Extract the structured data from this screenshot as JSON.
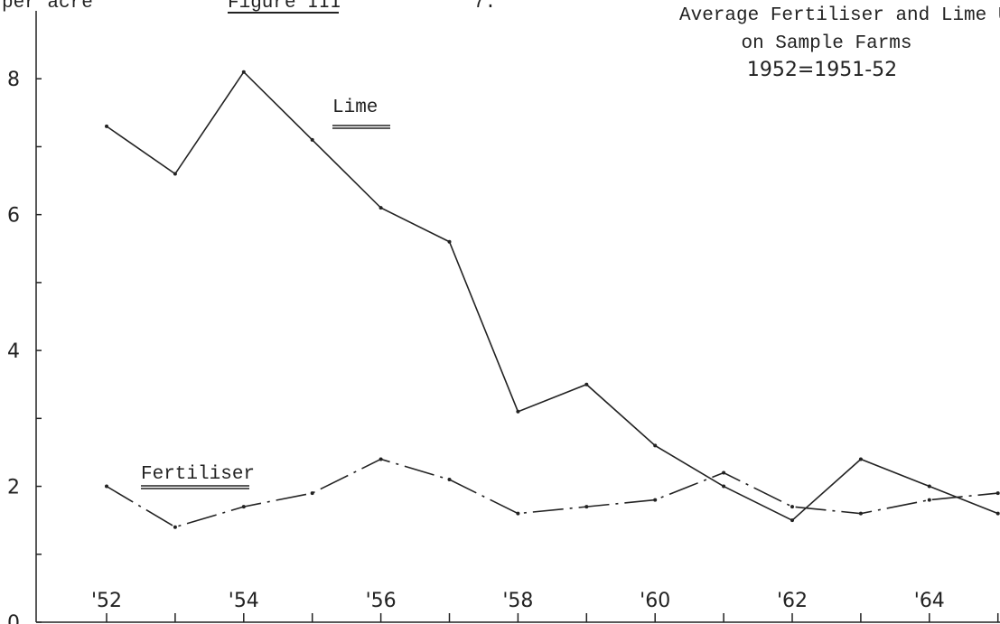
{
  "chart_data": {
    "type": "line",
    "unit_label": "per acre",
    "figure_label": "Figure III",
    "page_number": "7.",
    "title": "Average Fertiliser and Lime Us",
    "subtitle": "on Sample Farms",
    "subtitle2": "1952=1951-52",
    "categories": [
      "'52",
      null,
      "'54",
      null,
      "'56",
      null,
      "'58",
      null,
      "'60",
      null,
      "'62",
      null,
      "'64",
      null
    ],
    "series": [
      {
        "name": "Lime",
        "color": "#222222",
        "dash": "none",
        "values": [
          7.3,
          6.6,
          8.1,
          7.1,
          6.1,
          5.6,
          3.1,
          3.5,
          2.6,
          2.0,
          1.5,
          2.4,
          2.0,
          1.6
        ]
      },
      {
        "name": "Fertiliser",
        "color": "#222222",
        "dash": "34 7 3 7",
        "values": [
          2.0,
          1.4,
          1.7,
          1.9,
          2.4,
          2.1,
          1.6,
          1.7,
          1.8,
          2.2,
          1.7,
          1.6,
          1.8,
          1.9
        ]
      }
    ],
    "ylim": [
      0,
      9
    ],
    "yticks": [
      0,
      2,
      4,
      6,
      8
    ],
    "yminorticks": [
      1,
      3,
      5,
      7
    ]
  }
}
